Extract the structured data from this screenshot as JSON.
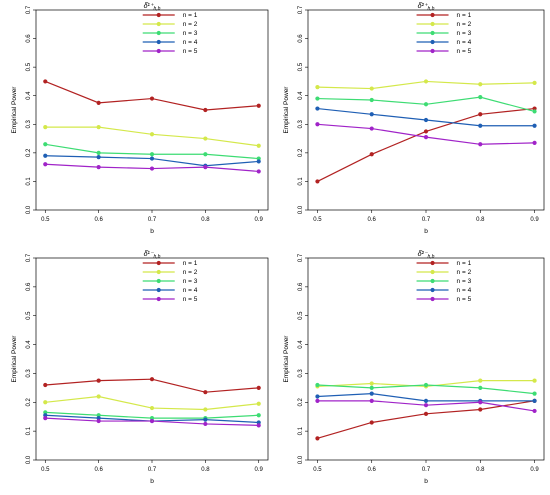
{
  "colors": {
    "n1": "#b22222",
    "n2": "#d4e84a",
    "n3": "#3ddc73",
    "n4": "#1f5fb4",
    "n5": "#a023c8"
  },
  "chart_data": [
    {
      "type": "line",
      "title": "δ̂¹⁺ h,b",
      "xlabel": "b",
      "ylabel": "Empirical Power",
      "x": [
        0.5,
        0.6,
        0.7,
        0.8,
        0.9
      ],
      "xticks": [
        "0.5",
        "0.6",
        "0.7",
        "0.8",
        "0.9"
      ],
      "ylim": [
        0,
        0.7
      ],
      "yticks": [
        "0.0",
        "0.1",
        "0.2",
        "0.3",
        "0.4",
        "0.5",
        "0.6",
        "0.7"
      ],
      "legend_position": "top-right",
      "series": [
        {
          "name": "n = 1",
          "values": [
            0.45,
            0.375,
            0.39,
            0.35,
            0.365
          ]
        },
        {
          "name": "n = 2",
          "values": [
            0.29,
            0.29,
            0.265,
            0.25,
            0.225
          ]
        },
        {
          "name": "n = 3",
          "values": [
            0.23,
            0.2,
            0.195,
            0.195,
            0.18
          ]
        },
        {
          "name": "n = 4",
          "values": [
            0.19,
            0.185,
            0.18,
            0.155,
            0.17
          ]
        },
        {
          "name": "n = 5",
          "values": [
            0.16,
            0.15,
            0.145,
            0.15,
            0.135
          ]
        }
      ]
    },
    {
      "type": "line",
      "title": "δ̂²⁺ h,b",
      "xlabel": "b",
      "ylabel": "Empirical Power",
      "x": [
        0.5,
        0.6,
        0.7,
        0.8,
        0.9
      ],
      "xticks": [
        "0.5",
        "0.6",
        "0.7",
        "0.8",
        "0.9"
      ],
      "ylim": [
        0,
        0.7
      ],
      "yticks": [
        "0.0",
        "0.1",
        "0.2",
        "0.3",
        "0.4",
        "0.5",
        "0.6",
        "0.7"
      ],
      "legend_position": "top-right",
      "series": [
        {
          "name": "n = 1",
          "values": [
            0.1,
            0.195,
            0.275,
            0.335,
            0.355
          ]
        },
        {
          "name": "n = 2",
          "values": [
            0.43,
            0.425,
            0.45,
            0.44,
            0.445
          ]
        },
        {
          "name": "n = 3",
          "values": [
            0.39,
            0.385,
            0.37,
            0.395,
            0.345
          ]
        },
        {
          "name": "n = 4",
          "values": [
            0.355,
            0.335,
            0.315,
            0.295,
            0.295
          ]
        },
        {
          "name": "n = 5",
          "values": [
            0.3,
            0.285,
            0.255,
            0.23,
            0.235
          ]
        }
      ]
    },
    {
      "type": "line",
      "title": "δ̂¹⁻ h,b",
      "xlabel": "b",
      "ylabel": "Empirical Power",
      "x": [
        0.5,
        0.6,
        0.7,
        0.8,
        0.9
      ],
      "xticks": [
        "0.5",
        "0.6",
        "0.7",
        "0.8",
        "0.9"
      ],
      "ylim": [
        0,
        0.7
      ],
      "yticks": [
        "0.0",
        "0.1",
        "0.2",
        "0.3",
        "0.4",
        "0.5",
        "0.6",
        "0.7"
      ],
      "legend_position": "top-right",
      "series": [
        {
          "name": "n = 1",
          "values": [
            0.26,
            0.275,
            0.28,
            0.235,
            0.25
          ]
        },
        {
          "name": "n = 2",
          "values": [
            0.2,
            0.22,
            0.18,
            0.175,
            0.195
          ]
        },
        {
          "name": "n = 3",
          "values": [
            0.165,
            0.155,
            0.145,
            0.145,
            0.155
          ]
        },
        {
          "name": "n = 4",
          "values": [
            0.155,
            0.145,
            0.135,
            0.14,
            0.13
          ]
        },
        {
          "name": "n = 5",
          "values": [
            0.145,
            0.135,
            0.135,
            0.125,
            0.12
          ]
        }
      ]
    },
    {
      "type": "line",
      "title": "δ̂²⁻ h,b",
      "xlabel": "b",
      "ylabel": "Empirical Power",
      "x": [
        0.5,
        0.6,
        0.7,
        0.8,
        0.9
      ],
      "xticks": [
        "0.5",
        "0.6",
        "0.7",
        "0.8",
        "0.9"
      ],
      "ylim": [
        0,
        0.7
      ],
      "yticks": [
        "0.0",
        "0.1",
        "0.2",
        "0.3",
        "0.4",
        "0.5",
        "0.6",
        "0.7"
      ],
      "legend_position": "top-right",
      "series": [
        {
          "name": "n = 1",
          "values": [
            0.075,
            0.13,
            0.16,
            0.175,
            0.205
          ]
        },
        {
          "name": "n = 2",
          "values": [
            0.255,
            0.265,
            0.255,
            0.275,
            0.275
          ]
        },
        {
          "name": "n = 3",
          "values": [
            0.26,
            0.25,
            0.26,
            0.25,
            0.23
          ]
        },
        {
          "name": "n = 4",
          "values": [
            0.22,
            0.23,
            0.205,
            0.205,
            0.205
          ]
        },
        {
          "name": "n = 5",
          "values": [
            0.205,
            0.205,
            0.19,
            0.2,
            0.17
          ]
        }
      ]
    }
  ]
}
